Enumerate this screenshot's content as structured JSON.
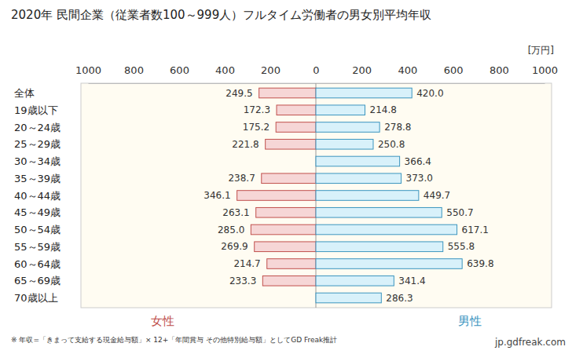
{
  "chart_data": {
    "type": "bar",
    "orientation": "horizontal",
    "title": "2020年 民間企業（従業者数100～999人）フルタイム労働者の男女別平均年収",
    "xlabel": "[万円]",
    "annotations": [
      "※ 年収=「きまって支給する現金給与額」× 12+「年間賞与 その他特別給与額」としてGD Freak推計",
      "jp.gdfreak.com"
    ],
    "categories": [
      "全体",
      "19歳以下",
      "20～24歳",
      "25～29歳",
      "30～34歳",
      "35～39歳",
      "40～44歳",
      "45～49歳",
      "50～54歳",
      "55～59歳",
      "60～64歳",
      "65～69歳",
      "70歳以上"
    ],
    "series": [
      {
        "name": "女性",
        "color": "#f6d6d6",
        "axis": "x2",
        "values": [
          249.5,
          172.3,
          175.2,
          221.8,
          null,
          238.7,
          346.1,
          263.1,
          285.0,
          269.9,
          214.7,
          233.3,
          null
        ],
        "value_labels": [
          "249.5",
          "172.3",
          "175.2",
          "221.8",
          null,
          "238.7",
          "346.1",
          "263.1",
          "285.0",
          "269.9",
          "214.7",
          "233.3",
          null
        ]
      },
      {
        "name": "男性",
        "color": "#d8f1fa",
        "values": [
          420.0,
          214.8,
          278.8,
          250.8,
          366.4,
          373.0,
          449.7,
          550.7,
          617.1,
          555.8,
          639.8,
          341.4,
          286.3
        ],
        "value_labels": [
          "420.0",
          "214.8",
          "278.8",
          "250.8",
          "366.4",
          "373.0",
          "449.7",
          "550.7",
          "617.1",
          "555.8",
          "639.8",
          "341.4",
          "286.3"
        ]
      }
    ],
    "xlim": [
      0,
      1000
    ],
    "xticks": [
      0,
      200,
      400,
      600,
      800,
      1000
    ],
    "x2lim": [
      1000,
      0
    ],
    "x2ticks": [
      1000,
      800,
      600,
      400,
      200
    ],
    "data_labels": true,
    "grid": false
  }
}
